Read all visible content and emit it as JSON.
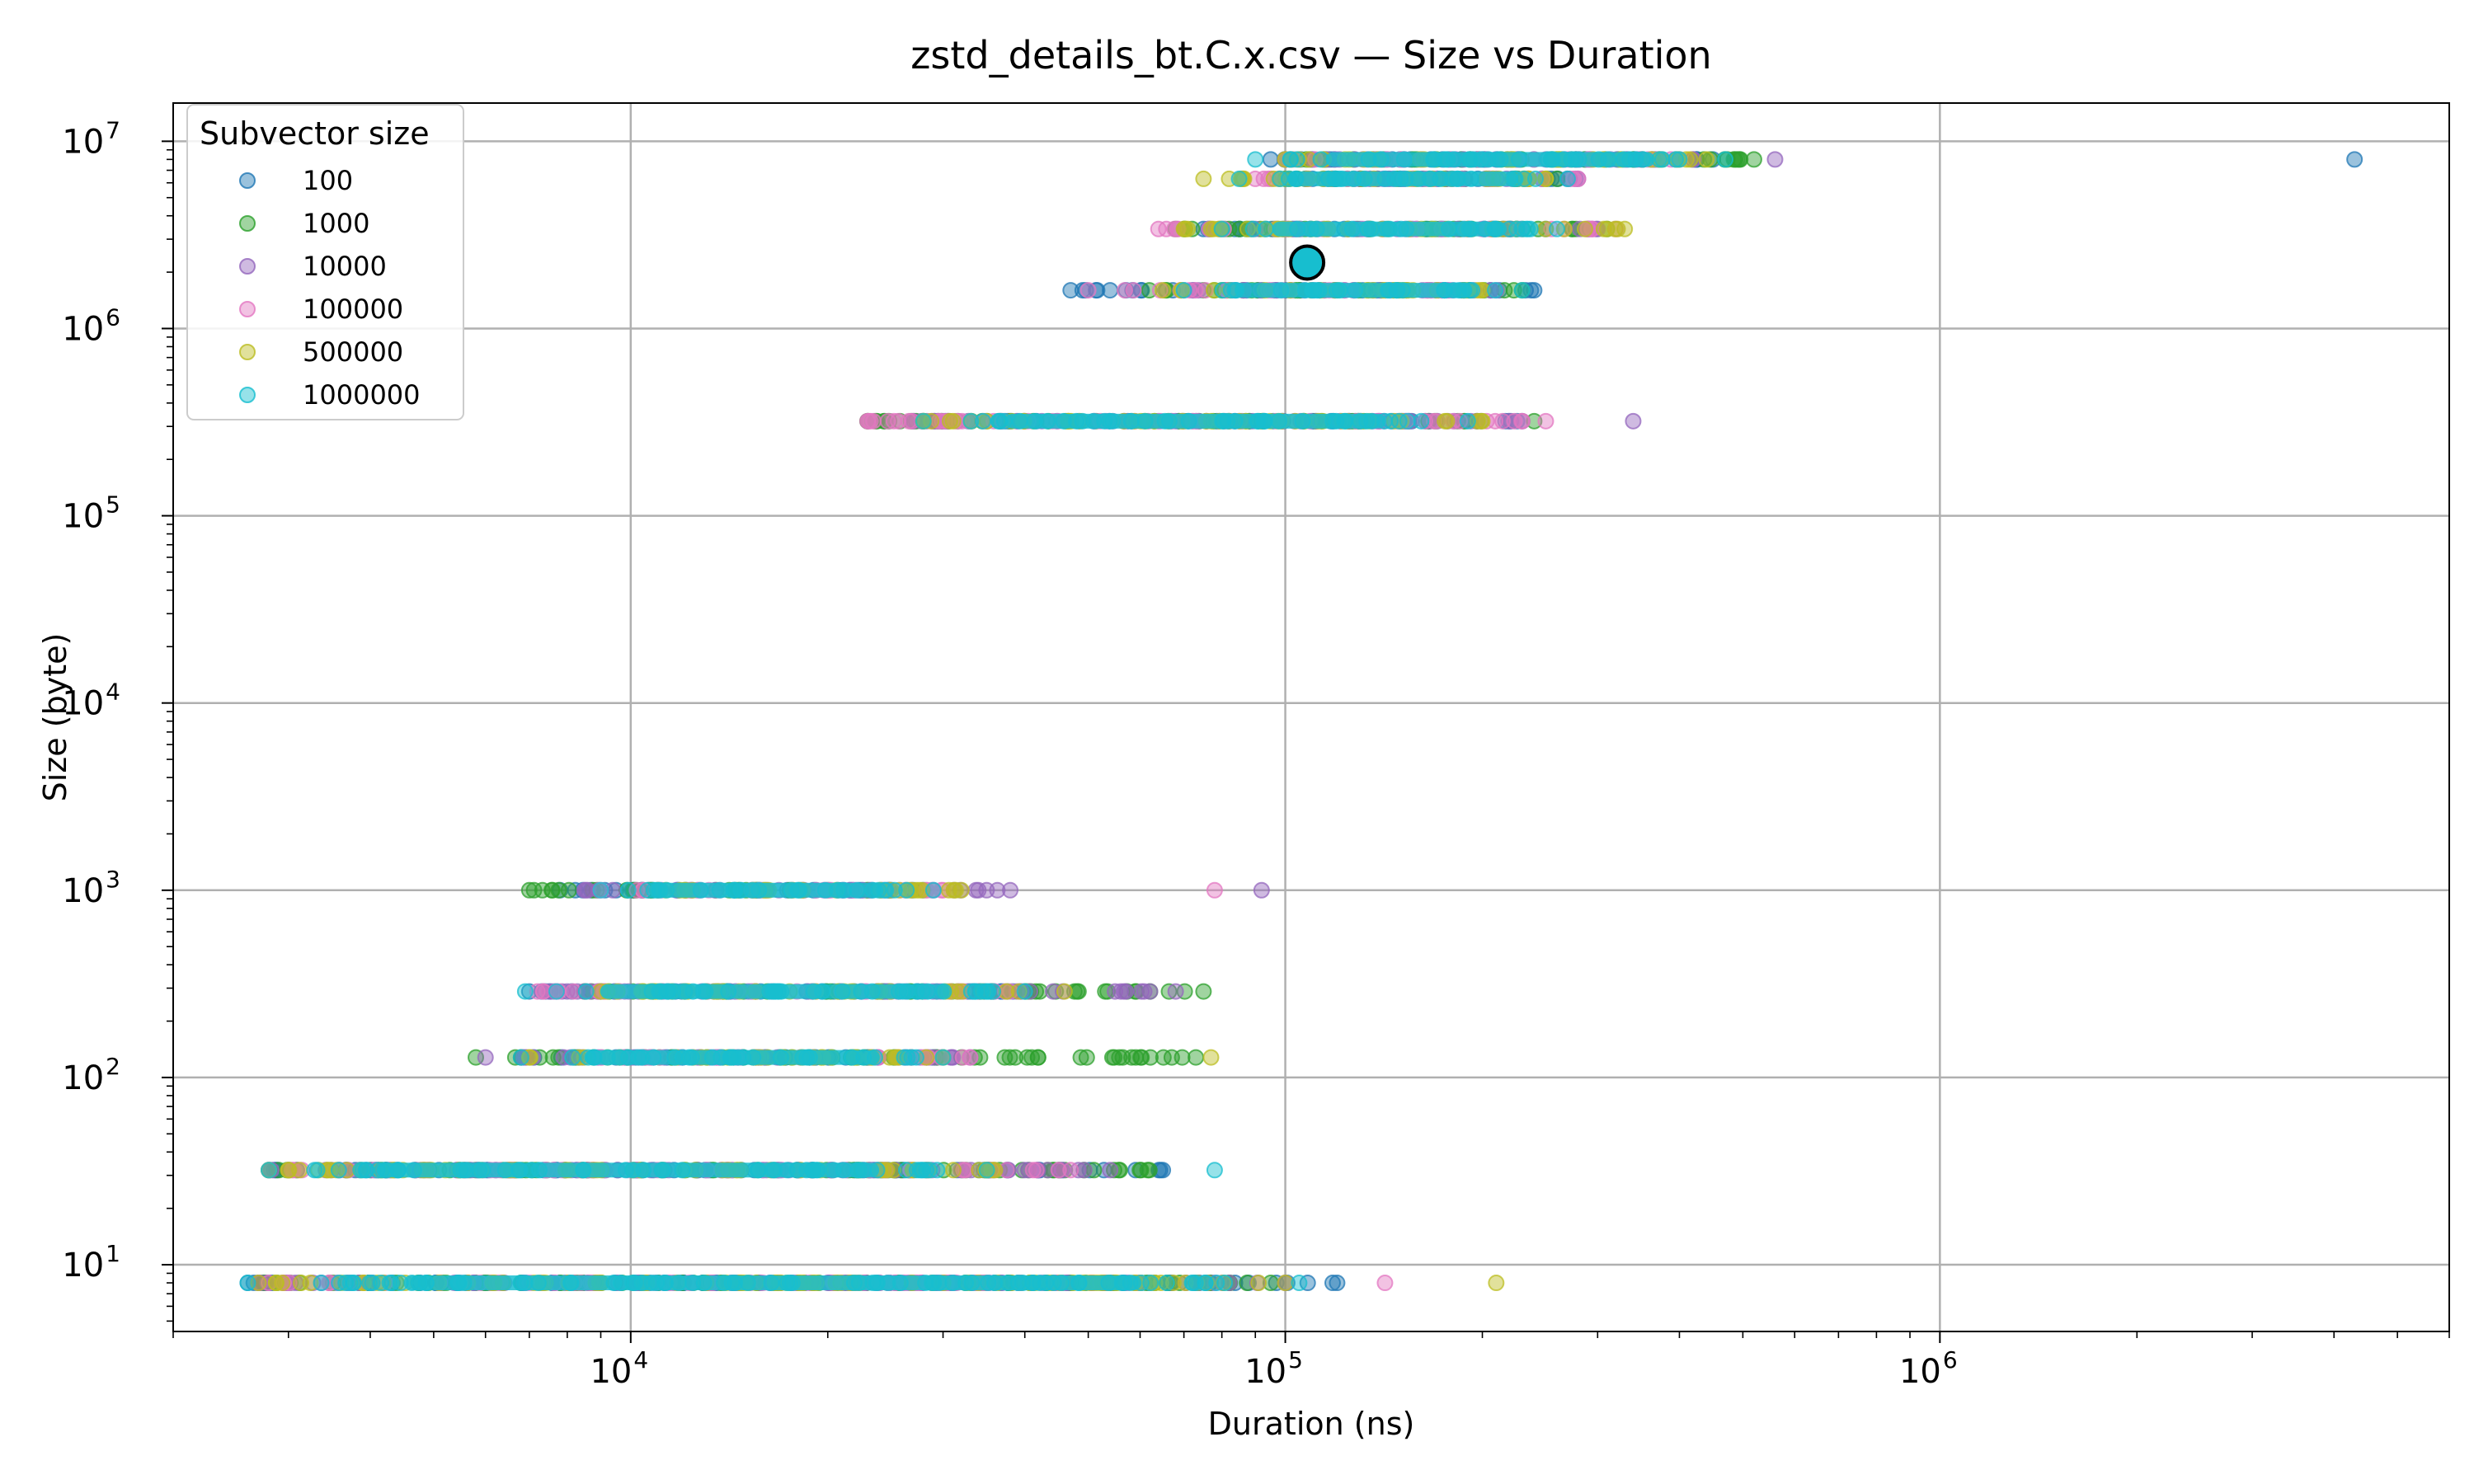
{
  "chart_data": {
    "type": "scatter",
    "title": "zstd_details_bt.C.x.csv — Size vs Duration",
    "xlabel": "Duration (ns)",
    "ylabel": "Size (byte)",
    "x_scale": "log",
    "y_scale": "log",
    "xlim": [
      2000,
      6000000
    ],
    "ylim": [
      4.4,
      16000000
    ],
    "x_ticks": [
      {
        "value": 10000,
        "base": "10",
        "exp": "4"
      },
      {
        "value": 100000,
        "base": "10",
        "exp": "5"
      },
      {
        "value": 1000000,
        "base": "10",
        "exp": "6"
      }
    ],
    "y_ticks": [
      {
        "value": 10,
        "base": "10",
        "exp": "1"
      },
      {
        "value": 100,
        "base": "10",
        "exp": "2"
      },
      {
        "value": 1000,
        "base": "10",
        "exp": "3"
      },
      {
        "value": 10000,
        "base": "10",
        "exp": "4"
      },
      {
        "value": 100000,
        "base": "10",
        "exp": "5"
      },
      {
        "value": 1000000,
        "base": "10",
        "exp": "6"
      },
      {
        "value": 10000000,
        "base": "10",
        "exp": "7"
      }
    ],
    "grid": true,
    "legend": {
      "title": "Subvector size",
      "placement": "top-left",
      "entries": [
        "100",
        "1000",
        "10000",
        "100000",
        "500000",
        "1000000"
      ]
    },
    "series": [
      {
        "name": "100",
        "color": "#1f77b4",
        "bands": [
          {
            "y": 8,
            "xmin": 2600,
            "xmax": 120000
          },
          {
            "y": 32,
            "xmin": 2800,
            "xmax": 65000
          },
          {
            "y": 128,
            "xmin": 6800,
            "xmax": 30000
          },
          {
            "y": 288,
            "xmin": 7000,
            "xmax": 40000
          },
          {
            "y": 1000,
            "xmin": 7800,
            "xmax": 28000
          },
          {
            "y": 320000,
            "xmin": 30000,
            "xmax": 230000
          },
          {
            "y": 1600000,
            "xmin": 47000,
            "xmax": 240000
          },
          {
            "y": 3400000,
            "xmin": 75000,
            "xmax": 250000
          },
          {
            "y": 6300000,
            "xmin": 110000,
            "xmax": 270000
          },
          {
            "y": 8000000,
            "xmin": 95000,
            "xmax": 450000
          }
        ],
        "points": [
          {
            "x": 4300000,
            "y": 8000000
          }
        ]
      },
      {
        "name": "1000",
        "color": "#2ca02c",
        "bands": [
          {
            "y": 8,
            "xmin": 2700,
            "xmax": 95000
          },
          {
            "y": 32,
            "xmin": 2900,
            "xmax": 62000
          },
          {
            "y": 128,
            "xmin": 5800,
            "xmax": 73000
          },
          {
            "y": 288,
            "xmin": 8500,
            "xmax": 75000
          },
          {
            "y": 1000,
            "xmin": 7000,
            "xmax": 27000
          },
          {
            "y": 320000,
            "xmin": 23000,
            "xmax": 240000
          },
          {
            "y": 1600000,
            "xmin": 62000,
            "xmax": 230000
          },
          {
            "y": 3400000,
            "xmin": 68000,
            "xmax": 310000
          },
          {
            "y": 6300000,
            "xmin": 100000,
            "xmax": 260000
          },
          {
            "y": 8000000,
            "xmin": 100000,
            "xmax": 520000
          }
        ],
        "points": []
      },
      {
        "name": "10000",
        "color": "#9467bd",
        "bands": [
          {
            "y": 8,
            "xmin": 2700,
            "xmax": 100000
          },
          {
            "y": 32,
            "xmin": 2800,
            "xmax": 54000
          },
          {
            "y": 128,
            "xmin": 6000,
            "xmax": 33000
          },
          {
            "y": 288,
            "xmin": 7500,
            "xmax": 68000
          },
          {
            "y": 1000,
            "xmin": 8500,
            "xmax": 38000
          },
          {
            "y": 320000,
            "xmin": 27000,
            "xmax": 220000
          },
          {
            "y": 1600000,
            "xmin": 70000,
            "xmax": 210000
          },
          {
            "y": 3400000,
            "xmin": 90000,
            "xmax": 300000
          },
          {
            "y": 6300000,
            "xmin": 130000,
            "xmax": 280000
          },
          {
            "y": 8000000,
            "xmin": 110000,
            "xmax": 420000
          }
        ],
        "points": [
          {
            "x": 92000,
            "y": 1000
          },
          {
            "x": 340000,
            "y": 320000
          },
          {
            "x": 560000,
            "y": 8000000
          }
        ]
      },
      {
        "name": "100000",
        "color": "#e377c2",
        "bands": [
          {
            "y": 8,
            "xmin": 2800,
            "xmax": 60000
          },
          {
            "y": 32,
            "xmin": 3000,
            "xmax": 47000
          },
          {
            "y": 128,
            "xmin": 9000,
            "xmax": 33000
          },
          {
            "y": 288,
            "xmin": 7200,
            "xmax": 38000
          },
          {
            "y": 1000,
            "xmin": 9000,
            "xmax": 30000
          },
          {
            "y": 320000,
            "xmin": 23000,
            "xmax": 250000
          },
          {
            "y": 1600000,
            "xmin": 50000,
            "xmax": 180000
          },
          {
            "y": 3400000,
            "xmin": 64000,
            "xmax": 320000
          },
          {
            "y": 6300000,
            "xmin": 90000,
            "xmax": 280000
          },
          {
            "y": 8000000,
            "xmin": 100000,
            "xmax": 400000
          }
        ],
        "points": [
          {
            "x": 142000,
            "y": 8
          },
          {
            "x": 78000,
            "y": 1000
          }
        ]
      },
      {
        "name": "500000",
        "color": "#bcbd22",
        "bands": [
          {
            "y": 8,
            "xmin": 2700,
            "xmax": 100000
          },
          {
            "y": 32,
            "xmin": 2800,
            "xmax": 36000
          },
          {
            "y": 128,
            "xmin": 7000,
            "xmax": 30000
          },
          {
            "y": 288,
            "xmin": 9000,
            "xmax": 46000
          },
          {
            "y": 1000,
            "xmin": 11000,
            "xmax": 32000
          },
          {
            "y": 320000,
            "xmin": 28000,
            "xmax": 200000
          },
          {
            "y": 1600000,
            "xmin": 65000,
            "xmax": 200000
          },
          {
            "y": 3400000,
            "xmin": 70000,
            "xmax": 330000
          },
          {
            "y": 6300000,
            "xmin": 75000,
            "xmax": 250000
          },
          {
            "y": 8000000,
            "xmin": 100000,
            "xmax": 440000
          }
        ],
        "points": [
          {
            "x": 210000,
            "y": 8
          },
          {
            "x": 77000,
            "y": 128
          },
          {
            "x": 98000,
            "y": 6300000
          }
        ]
      },
      {
        "name": "1000000",
        "color": "#17becf",
        "bands": [
          {
            "y": 8,
            "xmin": 2600,
            "xmax": 105000
          },
          {
            "y": 32,
            "xmin": 2800,
            "xmax": 35000
          },
          {
            "y": 128,
            "xmin": 6800,
            "xmax": 30000
          },
          {
            "y": 288,
            "xmin": 6900,
            "xmax": 40000
          },
          {
            "y": 1000,
            "xmin": 9000,
            "xmax": 29000
          },
          {
            "y": 320000,
            "xmin": 28000,
            "xmax": 190000
          },
          {
            "y": 1600000,
            "xmin": 70000,
            "xmax": 230000
          },
          {
            "y": 3400000,
            "xmin": 80000,
            "xmax": 260000
          },
          {
            "y": 6300000,
            "xmin": 85000,
            "xmax": 270000
          },
          {
            "y": 8000000,
            "xmin": 90000,
            "xmax": 470000
          }
        ],
        "points": [
          {
            "x": 78000,
            "y": 32
          }
        ]
      }
    ],
    "highlight": {
      "x": 108000,
      "y": 2250000,
      "color": "#17becf"
    }
  }
}
